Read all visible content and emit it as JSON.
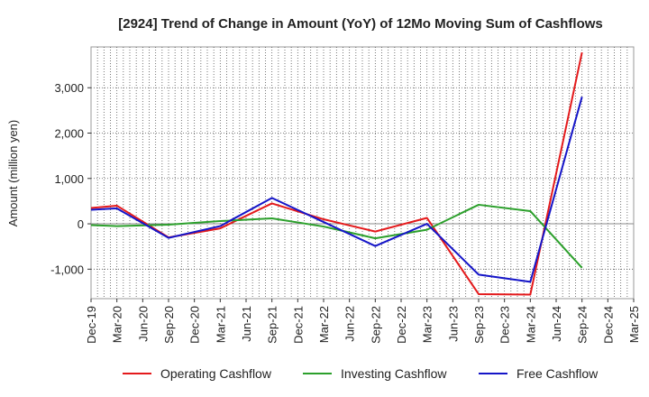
{
  "chart_data": {
    "type": "line",
    "title": "[2924]  Trend of Change in Amount (YoY) of 12Mo Moving Sum of Cashflows",
    "xlabel": "",
    "ylabel": "Amount (million yen)",
    "categories": [
      "Dec-19",
      "Mar-20",
      "Jun-20",
      "Sep-20",
      "Dec-20",
      "Mar-21",
      "Jun-21",
      "Sep-21",
      "Dec-21",
      "Mar-22",
      "Jun-22",
      "Sep-22",
      "Dec-22",
      "Mar-23",
      "Jun-23",
      "Sep-23",
      "Dec-23",
      "Mar-24",
      "Jun-24",
      "Sep-24",
      "Dec-24",
      "Mar-25"
    ],
    "ylim": [
      -1650,
      3900
    ],
    "yticks": [
      -1000,
      0,
      1000,
      2000,
      3000
    ],
    "ytick_labels": [
      "-1,000",
      "0",
      "1,000",
      "2,000",
      "3,000"
    ],
    "grid": true,
    "legend_position": "bottom",
    "series": [
      {
        "name": "Operating Cashflow",
        "color": "#e41a1c",
        "values": [
          350,
          400,
          null,
          -300,
          null,
          -100,
          null,
          450,
          null,
          100,
          null,
          -170,
          null,
          130,
          null,
          -1550,
          null,
          -1560,
          null,
          3780,
          null,
          null
        ]
      },
      {
        "name": "Investing Cashflow",
        "color": "#2ca02c",
        "values": [
          -30,
          -50,
          null,
          -20,
          null,
          60,
          null,
          120,
          null,
          -60,
          null,
          -320,
          null,
          -130,
          null,
          420,
          null,
          280,
          null,
          -970,
          null,
          null
        ]
      },
      {
        "name": "Free Cashflow",
        "color": "#1515c8",
        "values": [
          310,
          340,
          null,
          -310,
          null,
          -50,
          null,
          570,
          null,
          40,
          null,
          -490,
          null,
          0,
          null,
          -1120,
          null,
          -1280,
          null,
          2800,
          null,
          null
        ]
      }
    ]
  }
}
